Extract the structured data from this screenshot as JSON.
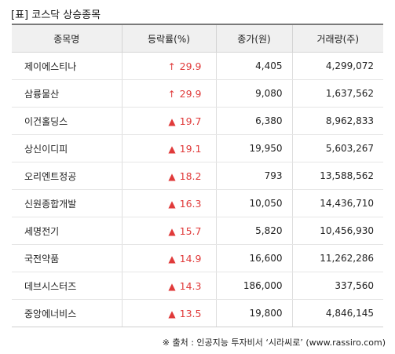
{
  "title": "[표] 코스닥 상승종목",
  "colors": {
    "up": "#e03a3a",
    "header_bg": "#f0f0f0"
  },
  "table": {
    "headers": [
      "종목명",
      "등락률(%)",
      "종가(원)",
      "거래량(주)"
    ],
    "rows": [
      {
        "name": "제이에스티나",
        "arrow": "↑",
        "rate": "29.9",
        "price": "4,405",
        "volume": "4,299,072"
      },
      {
        "name": "삼륭물산",
        "arrow": "↑",
        "rate": "29.9",
        "price": "9,080",
        "volume": "1,637,562"
      },
      {
        "name": "이건홀딩스",
        "arrow": "▲",
        "rate": "19.7",
        "price": "6,380",
        "volume": "8,962,833"
      },
      {
        "name": "상신이디피",
        "arrow": "▲",
        "rate": "19.1",
        "price": "19,950",
        "volume": "5,603,267"
      },
      {
        "name": "오리엔트정공",
        "arrow": "▲",
        "rate": "18.2",
        "price": "793",
        "volume": "13,588,562"
      },
      {
        "name": "신원종합개발",
        "arrow": "▲",
        "rate": "16.3",
        "price": "10,050",
        "volume": "14,436,710"
      },
      {
        "name": "세명전기",
        "arrow": "▲",
        "rate": "15.7",
        "price": "5,820",
        "volume": "10,456,930"
      },
      {
        "name": "국전약품",
        "arrow": "▲",
        "rate": "14.9",
        "price": "16,600",
        "volume": "11,262,286"
      },
      {
        "name": "데브시스터즈",
        "arrow": "▲",
        "rate": "14.3",
        "price": "186,000",
        "volume": "337,560"
      },
      {
        "name": "중앙에너비스",
        "arrow": "▲",
        "rate": "13.5",
        "price": "19,800",
        "volume": "4,846,145"
      }
    ]
  },
  "footer": "※ 출처 : 인공지능 투자비서 ‘시라씨로’ (www.rassiro.com)"
}
